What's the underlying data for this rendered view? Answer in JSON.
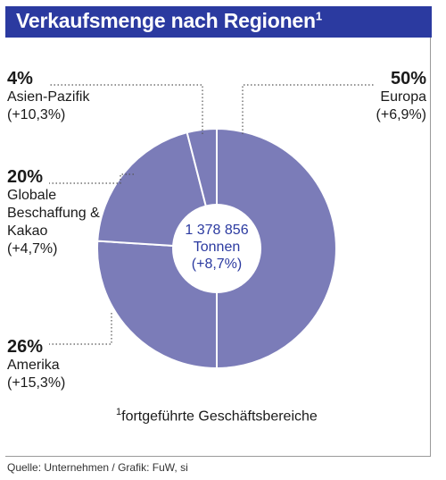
{
  "title": "Verkaufsmenge nach Regionen",
  "title_sup": "1",
  "center": {
    "line1": "1 378 856",
    "line2": "Tonnen",
    "line3": "(+8,7%)"
  },
  "footnote": {
    "marker": "1",
    "text": "fortgeführte Geschäftsbereiche"
  },
  "source": "Quelle: Unternehmen / Grafik: FuW, si",
  "colors": {
    "title_bg": "#2b3aa0",
    "slice": "#7b7cb8",
    "accent_text": "#2b3aa0"
  },
  "chart_data": {
    "type": "pie",
    "style": "donut",
    "title": "Verkaufsmenge nach Regionen",
    "total": "1 378 856 Tonnen",
    "total_change": "+8,7%",
    "categories": [
      "Europa",
      "Amerika",
      "Globale Beschaffung & Kakao",
      "Asien-Pazifik"
    ],
    "values": [
      50,
      26,
      20,
      4
    ],
    "changes": [
      "+6,9%",
      "+15,3%",
      "+4,7%",
      "+10,3%"
    ],
    "labels": {
      "europa": {
        "pct": "50%",
        "lines": [
          "Europa",
          "(+6,9%)"
        ]
      },
      "amerika": {
        "pct": "26%",
        "lines": [
          "Amerika",
          "(+15,3%)"
        ]
      },
      "globale": {
        "pct": "20%",
        "lines": [
          "Globale",
          "Beschaffung &",
          "Kakao",
          "(+4,7%)"
        ]
      },
      "asien": {
        "pct": "4%",
        "lines": [
          "Asien-Pazifik",
          "(+10,3%)"
        ]
      }
    }
  }
}
